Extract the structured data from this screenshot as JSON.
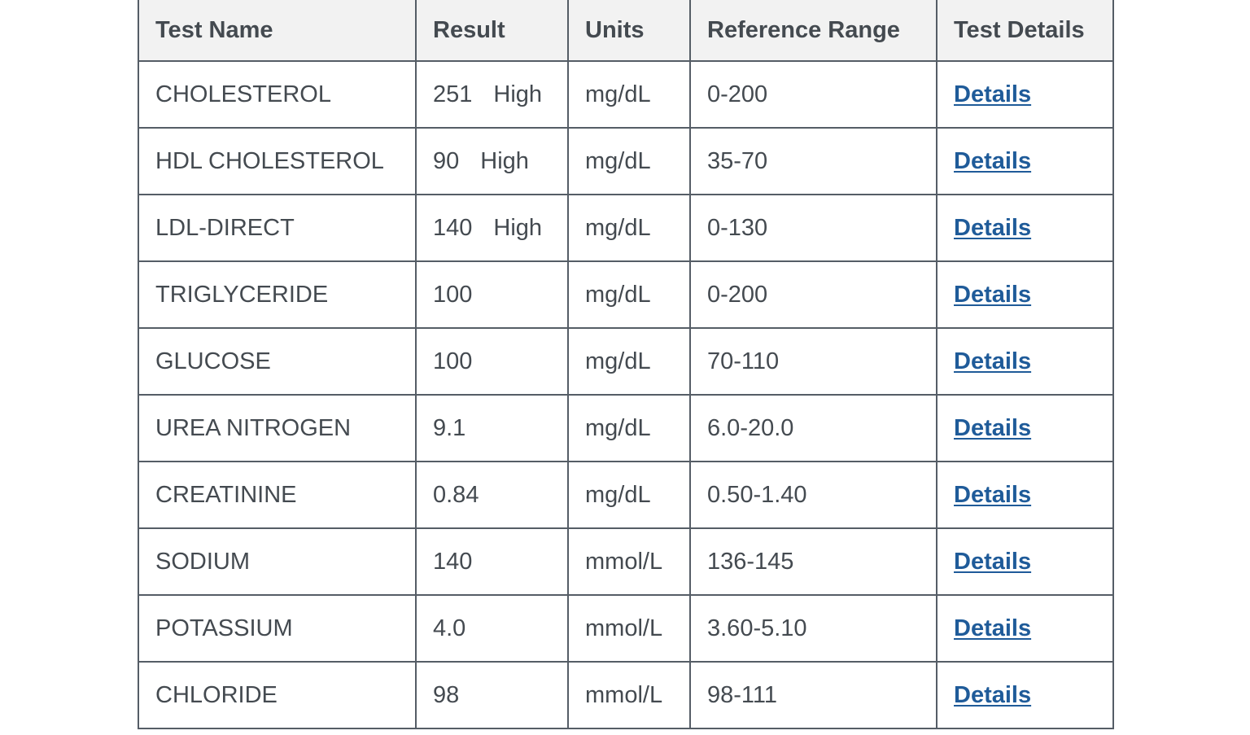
{
  "table": {
    "headers": {
      "test_name": "Test Name",
      "result": "Result",
      "units": "Units",
      "reference_range": "Reference Range",
      "test_details": "Test Details"
    },
    "rows": [
      {
        "test_name": "CHOLESTEROL",
        "result": "251",
        "flag": "High",
        "units": "mg/dL",
        "reference_range": "0-200",
        "details_label": "Details"
      },
      {
        "test_name": "HDL CHOLESTEROL",
        "result": "90",
        "flag": "High",
        "units": "mg/dL",
        "reference_range": "35-70",
        "details_label": "Details"
      },
      {
        "test_name": "LDL-DIRECT",
        "result": "140",
        "flag": "High",
        "units": "mg/dL",
        "reference_range": "0-130",
        "details_label": "Details"
      },
      {
        "test_name": "TRIGLYCERIDE",
        "result": "100",
        "flag": "",
        "units": "mg/dL",
        "reference_range": "0-200",
        "details_label": "Details"
      },
      {
        "test_name": "GLUCOSE",
        "result": "100",
        "flag": "",
        "units": "mg/dL",
        "reference_range": "70-110",
        "details_label": "Details"
      },
      {
        "test_name": "UREA NITROGEN",
        "result": "9.1",
        "flag": "",
        "units": "mg/dL",
        "reference_range": "6.0-20.0",
        "details_label": "Details"
      },
      {
        "test_name": "CREATININE",
        "result": "0.84",
        "flag": "",
        "units": "mg/dL",
        "reference_range": "0.50-1.40",
        "details_label": "Details"
      },
      {
        "test_name": "SODIUM",
        "result": "140",
        "flag": "",
        "units": "mmol/L",
        "reference_range": "136-145",
        "details_label": "Details"
      },
      {
        "test_name": "POTASSIUM",
        "result": "4.0",
        "flag": "",
        "units": "mmol/L",
        "reference_range": "3.60-5.10",
        "details_label": "Details"
      },
      {
        "test_name": "CHLORIDE",
        "result": "98",
        "flag": "",
        "units": "mmol/L",
        "reference_range": "98-111",
        "details_label": "Details"
      }
    ]
  },
  "colors": {
    "header_bg": "#f2f2f2",
    "border": "#555d66",
    "text": "#444a50",
    "link": "#1f5b99"
  }
}
